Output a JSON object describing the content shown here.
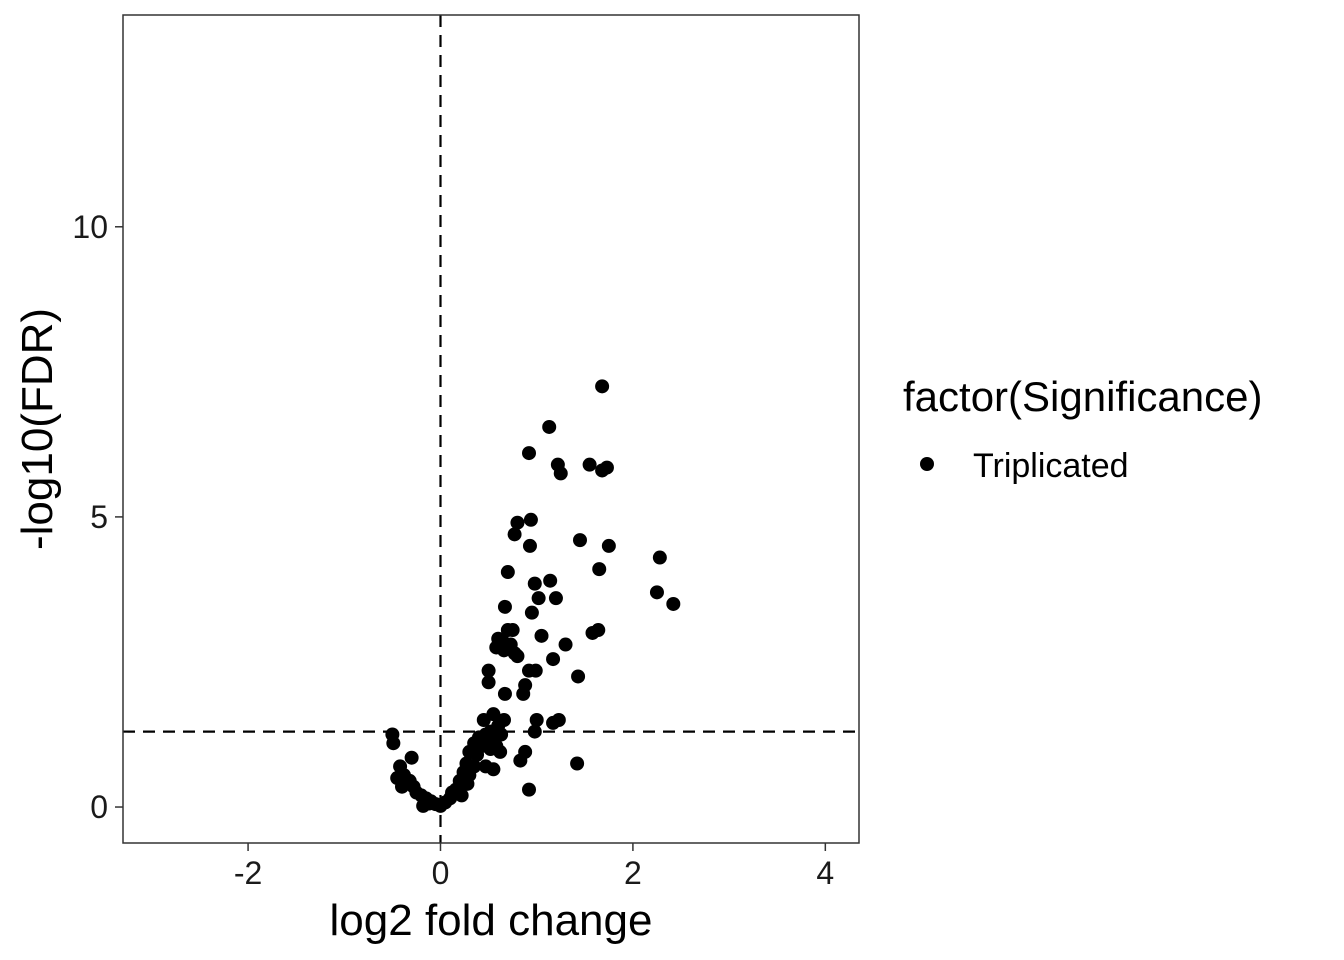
{
  "chart_data": {
    "type": "scatter",
    "xlabel": "log2 fold change",
    "ylabel": "-log10(FDR)",
    "xlim": [
      -3.3,
      4.35
    ],
    "ylim": [
      -0.62,
      13.65
    ],
    "x_ticks": [
      -2,
      0,
      2,
      4
    ],
    "y_ticks": [
      0,
      5,
      10
    ],
    "grid": false,
    "reference_lines": {
      "vertical_x": 0,
      "horizontal_y": 1.3
    },
    "legend": {
      "title": "factor(Significance)",
      "placement": "right",
      "entries": [
        "Triplicated"
      ]
    },
    "series": [
      {
        "name": "Triplicated",
        "color": "#000000",
        "points": [
          [
            1.68,
            7.25
          ],
          [
            1.13,
            6.55
          ],
          [
            0.92,
            6.1
          ],
          [
            1.22,
            5.9
          ],
          [
            1.25,
            5.75
          ],
          [
            1.55,
            5.9
          ],
          [
            1.68,
            5.8
          ],
          [
            1.73,
            5.85
          ],
          [
            0.8,
            4.9
          ],
          [
            0.94,
            4.95
          ],
          [
            0.77,
            4.7
          ],
          [
            0.93,
            4.5
          ],
          [
            1.45,
            4.6
          ],
          [
            1.75,
            4.5
          ],
          [
            2.28,
            4.3
          ],
          [
            1.65,
            4.1
          ],
          [
            0.7,
            4.05
          ],
          [
            0.98,
            3.85
          ],
          [
            1.14,
            3.9
          ],
          [
            2.25,
            3.7
          ],
          [
            1.02,
            3.6
          ],
          [
            1.2,
            3.6
          ],
          [
            2.42,
            3.5
          ],
          [
            0.67,
            3.45
          ],
          [
            0.95,
            3.35
          ],
          [
            0.7,
            3.05
          ],
          [
            0.75,
            3.05
          ],
          [
            1.05,
            2.95
          ],
          [
            1.58,
            3.0
          ],
          [
            1.64,
            3.05
          ],
          [
            0.6,
            2.9
          ],
          [
            0.65,
            2.85
          ],
          [
            0.73,
            2.8
          ],
          [
            0.58,
            2.75
          ],
          [
            0.66,
            2.7
          ],
          [
            0.77,
            2.65
          ],
          [
            0.8,
            2.6
          ],
          [
            1.3,
            2.8
          ],
          [
            0.5,
            2.35
          ],
          [
            0.92,
            2.35
          ],
          [
            0.99,
            2.35
          ],
          [
            1.43,
            2.25
          ],
          [
            0.5,
            2.15
          ],
          [
            0.88,
            2.1
          ],
          [
            1.17,
            2.55
          ],
          [
            0.67,
            1.95
          ],
          [
            0.86,
            1.95
          ],
          [
            0.55,
            1.6
          ],
          [
            0.45,
            1.5
          ],
          [
            0.66,
            1.5
          ],
          [
            1.23,
            1.5
          ],
          [
            1.17,
            1.45
          ],
          [
            0.6,
            1.4
          ],
          [
            0.98,
            1.3
          ],
          [
            0.52,
            1.3
          ],
          [
            0.4,
            1.2
          ],
          [
            0.47,
            1.25
          ],
          [
            0.55,
            1.2
          ],
          [
            0.63,
            1.25
          ],
          [
            0.35,
            1.1
          ],
          [
            0.43,
            1.05
          ],
          [
            0.5,
            1.1
          ],
          [
            0.58,
            1.05
          ],
          [
            0.3,
            0.95
          ],
          [
            0.38,
            0.9
          ],
          [
            0.52,
            1.0
          ],
          [
            0.62,
            0.95
          ],
          [
            0.83,
            0.8
          ],
          [
            0.88,
            0.95
          ],
          [
            1.42,
            0.75
          ],
          [
            0.27,
            0.75
          ],
          [
            0.35,
            0.7
          ],
          [
            0.47,
            0.7
          ],
          [
            0.55,
            0.65
          ],
          [
            0.24,
            0.6
          ],
          [
            0.3,
            0.55
          ],
          [
            0.2,
            0.45
          ],
          [
            0.28,
            0.4
          ],
          [
            0.16,
            0.3
          ],
          [
            0.22,
            0.2
          ],
          [
            0.12,
            0.25
          ],
          [
            0.1,
            0.15
          ],
          [
            0.05,
            0.08
          ],
          [
            0.0,
            0.02
          ],
          [
            -0.05,
            0.05
          ],
          [
            -0.1,
            0.1
          ],
          [
            -0.15,
            0.15
          ],
          [
            -0.2,
            0.2
          ],
          [
            -0.25,
            0.25
          ],
          [
            -0.18,
            0.02
          ],
          [
            -0.12,
            0.06
          ],
          [
            -0.28,
            0.35
          ],
          [
            -0.32,
            0.45
          ],
          [
            -0.38,
            0.55
          ],
          [
            -0.4,
            0.35
          ],
          [
            -0.45,
            0.5
          ],
          [
            -0.42,
            0.7
          ],
          [
            -0.3,
            0.85
          ],
          [
            -0.5,
            1.25
          ],
          [
            -0.49,
            1.1
          ],
          [
            0.92,
            0.3
          ],
          [
            1.0,
            1.5
          ]
        ]
      }
    ]
  }
}
